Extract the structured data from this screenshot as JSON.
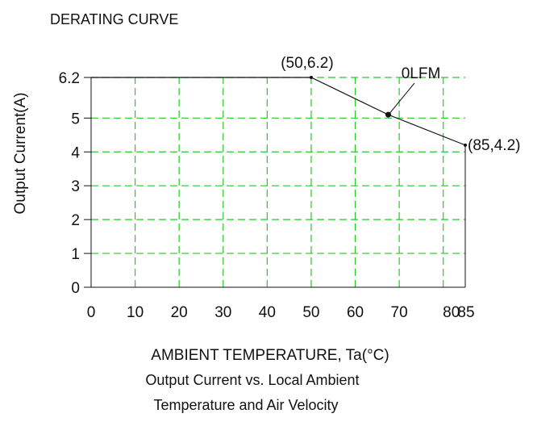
{
  "chart_data": {
    "type": "line",
    "title": "DERATING CURVE",
    "xlabel": "AMBIENT TEMPERATURE, Ta(°C)",
    "ylabel": "Output Current(A)",
    "caption_lines": [
      "Output Current vs. Local Ambient",
      "Temperature and Air Velocity"
    ],
    "xlim": [
      0,
      85
    ],
    "ylim": [
      0,
      6.2
    ],
    "x_ticks": [
      0,
      10,
      20,
      30,
      40,
      50,
      60,
      70,
      80,
      85
    ],
    "x_tick_labels": [
      "0",
      "10",
      "20",
      "30",
      "40",
      "50",
      "60",
      "70",
      "80",
      "85"
    ],
    "y_ticks": [
      0,
      1,
      2,
      3,
      4,
      5,
      6.2
    ],
    "y_tick_labels": [
      "0",
      "1",
      "2",
      "3",
      "4",
      "5",
      "6.2"
    ],
    "grid": true,
    "grid_color": "#22cc22",
    "line_color": "#111111",
    "series": [
      {
        "name": "0LFM",
        "x": [
          0,
          50,
          67.5,
          85
        ],
        "y": [
          6.2,
          6.2,
          5.1,
          4.2
        ]
      }
    ],
    "annotations": [
      {
        "text": "(50,6.2)",
        "x": 50,
        "y": 6.2
      },
      {
        "text": "(85,4.2)",
        "x": 85,
        "y": 4.2
      },
      {
        "text": "0LFM",
        "x": 67.5,
        "y": 5.1
      }
    ]
  }
}
